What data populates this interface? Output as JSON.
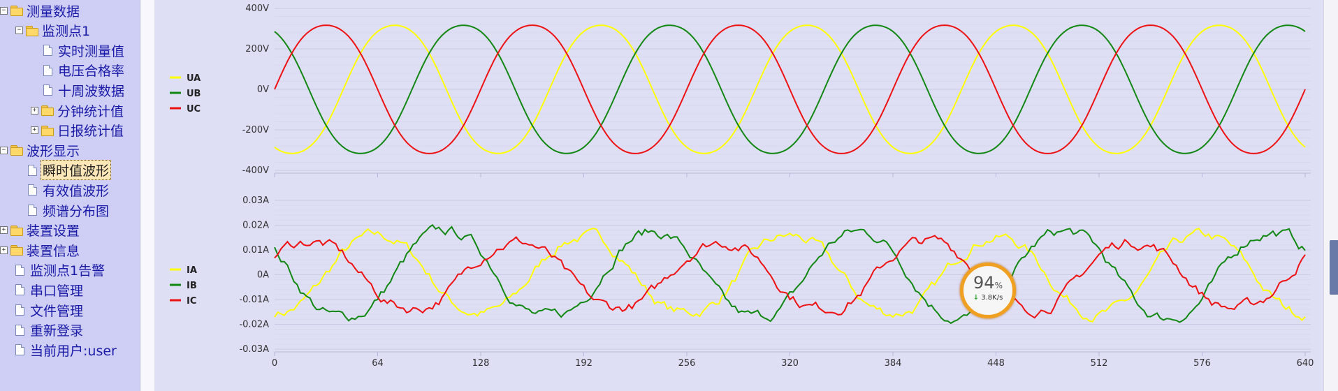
{
  "sidebar": {
    "items": [
      {
        "label": "测量数据",
        "expander": "−",
        "icon": "folder-icon"
      },
      {
        "label": "监测点1",
        "expander": "−",
        "icon": "folder-icon"
      },
      {
        "label": "实时测量值",
        "icon": "document-icon"
      },
      {
        "label": "电压合格率",
        "icon": "document-icon"
      },
      {
        "label": "十周波数据",
        "icon": "document-icon"
      },
      {
        "label": "分钟统计值",
        "expander": "+",
        "icon": "folder-icon"
      },
      {
        "label": "日报统计值",
        "expander": "+",
        "icon": "folder-icon"
      },
      {
        "label": "波形显示",
        "expander": "−",
        "icon": "folder-icon"
      },
      {
        "label": "瞬时值波形",
        "icon": "document-icon",
        "selected": true
      },
      {
        "label": "有效值波形",
        "icon": "document-icon"
      },
      {
        "label": "频谱分布图",
        "icon": "document-icon"
      },
      {
        "label": "装置设置",
        "expander": "+",
        "icon": "folder-icon"
      },
      {
        "label": "装置信息",
        "expander": "+",
        "icon": "folder-icon"
      },
      {
        "label": "监测点1告警",
        "icon": "document-icon"
      },
      {
        "label": "串口管理",
        "icon": "document-icon"
      },
      {
        "label": "文件管理",
        "icon": "document-icon"
      },
      {
        "label": "重新登录",
        "icon": "document-icon"
      },
      {
        "label": "当前用户:user",
        "icon": "document-icon"
      }
    ]
  },
  "net_widget": {
    "percent": "94",
    "percent_unit": "%",
    "speed": "3.8K/s",
    "arrow_icon": "down-arrow-icon"
  },
  "chart_data": [
    {
      "type": "line",
      "title": "",
      "x_ticks": [
        "0",
        "64",
        "128",
        "192",
        "256",
        "320",
        "384",
        "448",
        "512",
        "576",
        "640"
      ],
      "y_ticks": [
        "400V",
        "200V",
        "0V",
        "-200V",
        "-400V"
      ],
      "ylim": [
        -400,
        400
      ],
      "xlim": [
        0,
        640
      ],
      "series": [
        {
          "name": "UA",
          "color": "#ffff00",
          "amplitude": 330,
          "phase_deg": -120,
          "period": 128
        },
        {
          "name": "UB",
          "color": "#118811",
          "amplitude": 330,
          "phase_deg": 120,
          "period": 128
        },
        {
          "name": "UC",
          "color": "#ee1111",
          "amplitude": 330,
          "phase_deg": 0,
          "period": 128
        }
      ],
      "legend": "left"
    },
    {
      "type": "line",
      "title": "",
      "x_ticks": [
        "0",
        "64",
        "128",
        "192",
        "256",
        "320",
        "384",
        "448",
        "512",
        "576",
        "640"
      ],
      "y_ticks": [
        "0.03A",
        "0.02A",
        "0.01A",
        "0A",
        "-0.01A",
        "-0.02A",
        "-0.03A"
      ],
      "ylim": [
        -0.03,
        0.03
      ],
      "xlim": [
        0,
        640
      ],
      "series": [
        {
          "name": "IA",
          "color": "#ffff00",
          "amplitude": 0.016,
          "phase_deg": -90,
          "period": 128
        },
        {
          "name": "IB",
          "color": "#118811",
          "amplitude": 0.018,
          "phase_deg": 150,
          "period": 128
        },
        {
          "name": "IC",
          "color": "#ee1111",
          "amplitude": 0.014,
          "phase_deg": 30,
          "period": 128
        }
      ],
      "legend": "left"
    }
  ]
}
